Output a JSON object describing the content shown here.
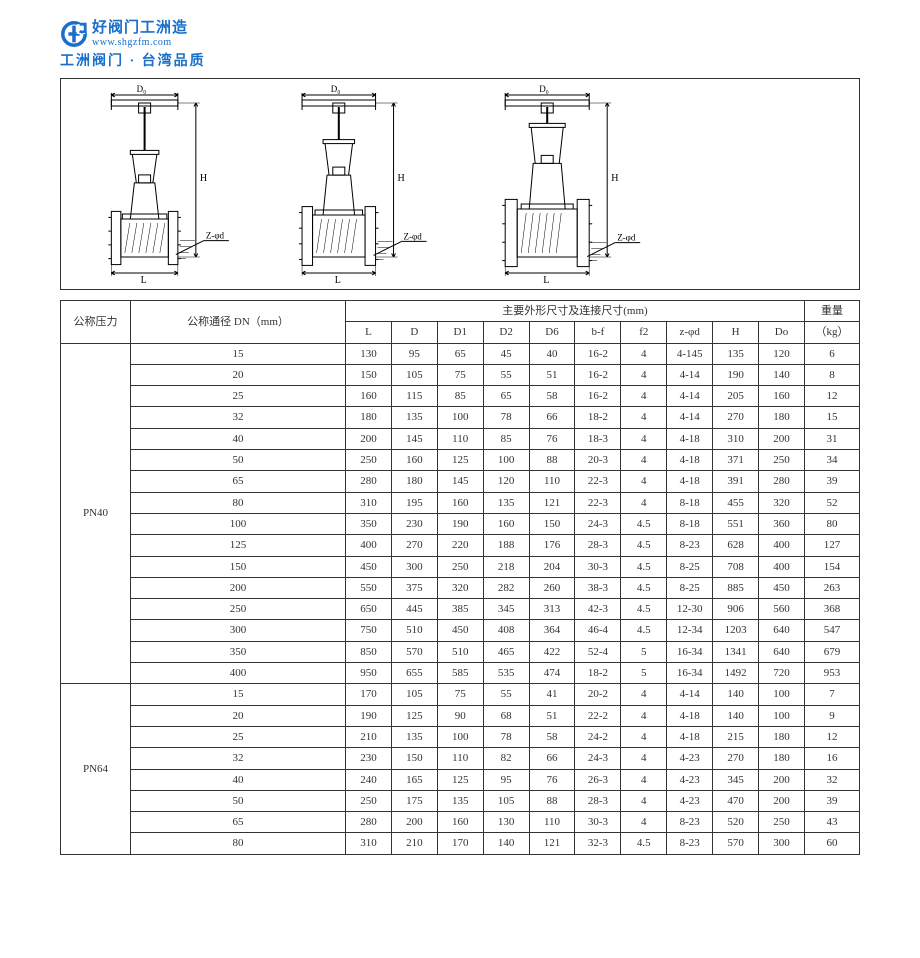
{
  "logo": {
    "main": "好阀门工洲造",
    "url": "www.shgzfm.com",
    "sub": "工洲阀门 · 台湾品质",
    "icon_color": "#1a6fc9"
  },
  "diagram": {
    "labels": {
      "D0": "D₀",
      "H": "H",
      "L": "L",
      "Zphid": "Z-φd",
      "D": "D"
    },
    "stroke": "#000000",
    "line_width": 1
  },
  "table": {
    "header": {
      "pressure": "公称压力",
      "dn": "公称通径 DN（mm）",
      "dims_group": "主要外形尺寸及连接尺寸(mm)",
      "weight": "重量",
      "weight_unit": "（kg）",
      "cols": [
        "L",
        "D",
        "D1",
        "D2",
        "D6",
        "b-f",
        "f2",
        "z-φd",
        "H",
        "Do"
      ]
    },
    "groups": [
      {
        "pressure": "PN40",
        "rows": [
          {
            "dn": "15",
            "L": "130",
            "D": "95",
            "D1": "65",
            "D2": "45",
            "D6": "40",
            "bf": "16-2",
            "f2": "4",
            "zphid": "4-145",
            "H": "135",
            "Do": "120",
            "kg": "6"
          },
          {
            "dn": "20",
            "L": "150",
            "D": "105",
            "D1": "75",
            "D2": "55",
            "D6": "51",
            "bf": "16-2",
            "f2": "4",
            "zphid": "4-14",
            "H": "190",
            "Do": "140",
            "kg": "8"
          },
          {
            "dn": "25",
            "L": "160",
            "D": "115",
            "D1": "85",
            "D2": "65",
            "D6": "58",
            "bf": "16-2",
            "f2": "4",
            "zphid": "4-14",
            "H": "205",
            "Do": "160",
            "kg": "12"
          },
          {
            "dn": "32",
            "L": "180",
            "D": "135",
            "D1": "100",
            "D2": "78",
            "D6": "66",
            "bf": "18-2",
            "f2": "4",
            "zphid": "4-14",
            "H": "270",
            "Do": "180",
            "kg": "15"
          },
          {
            "dn": "40",
            "L": "200",
            "D": "145",
            "D1": "110",
            "D2": "85",
            "D6": "76",
            "bf": "18-3",
            "f2": "4",
            "zphid": "4-18",
            "H": "310",
            "Do": "200",
            "kg": "31"
          },
          {
            "dn": "50",
            "L": "250",
            "D": "160",
            "D1": "125",
            "D2": "100",
            "D6": "88",
            "bf": "20-3",
            "f2": "4",
            "zphid": "4-18",
            "H": "371",
            "Do": "250",
            "kg": "34"
          },
          {
            "dn": "65",
            "L": "280",
            "D": "180",
            "D1": "145",
            "D2": "120",
            "D6": "110",
            "bf": "22-3",
            "f2": "4",
            "zphid": "4-18",
            "H": "391",
            "Do": "280",
            "kg": "39"
          },
          {
            "dn": "80",
            "L": "310",
            "D": "195",
            "D1": "160",
            "D2": "135",
            "D6": "121",
            "bf": "22-3",
            "f2": "4",
            "zphid": "8-18",
            "H": "455",
            "Do": "320",
            "kg": "52"
          },
          {
            "dn": "100",
            "L": "350",
            "D": "230",
            "D1": "190",
            "D2": "160",
            "D6": "150",
            "bf": "24-3",
            "f2": "4.5",
            "zphid": "8-18",
            "H": "551",
            "Do": "360",
            "kg": "80"
          },
          {
            "dn": "125",
            "L": "400",
            "D": "270",
            "D1": "220",
            "D2": "188",
            "D6": "176",
            "bf": "28-3",
            "f2": "4.5",
            "zphid": "8-23",
            "H": "628",
            "Do": "400",
            "kg": "127"
          },
          {
            "dn": "150",
            "L": "450",
            "D": "300",
            "D1": "250",
            "D2": "218",
            "D6": "204",
            "bf": "30-3",
            "f2": "4.5",
            "zphid": "8-25",
            "H": "708",
            "Do": "400",
            "kg": "154"
          },
          {
            "dn": "200",
            "L": "550",
            "D": "375",
            "D1": "320",
            "D2": "282",
            "D6": "260",
            "bf": "38-3",
            "f2": "4.5",
            "zphid": "8-25",
            "H": "885",
            "Do": "450",
            "kg": "263"
          },
          {
            "dn": "250",
            "L": "650",
            "D": "445",
            "D1": "385",
            "D2": "345",
            "D6": "313",
            "bf": "42-3",
            "f2": "4.5",
            "zphid": "12-30",
            "H": "906",
            "Do": "560",
            "kg": "368"
          },
          {
            "dn": "300",
            "L": "750",
            "D": "510",
            "D1": "450",
            "D2": "408",
            "D6": "364",
            "bf": "46-4",
            "f2": "4.5",
            "zphid": "12-34",
            "H": "1203",
            "Do": "640",
            "kg": "547"
          },
          {
            "dn": "350",
            "L": "850",
            "D": "570",
            "D1": "510",
            "D2": "465",
            "D6": "422",
            "bf": "52-4",
            "f2": "5",
            "zphid": "16-34",
            "H": "1341",
            "Do": "640",
            "kg": "679"
          },
          {
            "dn": "400",
            "L": "950",
            "D": "655",
            "D1": "585",
            "D2": "535",
            "D6": "474",
            "bf": "18-2",
            "f2": "5",
            "zphid": "16-34",
            "H": "1492",
            "Do": "720",
            "kg": "953"
          }
        ]
      },
      {
        "pressure": "PN64",
        "rows": [
          {
            "dn": "15",
            "L": "170",
            "D": "105",
            "D1": "75",
            "D2": "55",
            "D6": "41",
            "bf": "20-2",
            "f2": "4",
            "zphid": "4-14",
            "H": "140",
            "Do": "100",
            "kg": "7"
          },
          {
            "dn": "20",
            "L": "190",
            "D": "125",
            "D1": "90",
            "D2": "68",
            "D6": "51",
            "bf": "22-2",
            "f2": "4",
            "zphid": "4-18",
            "H": "140",
            "Do": "100",
            "kg": "9"
          },
          {
            "dn": "25",
            "L": "210",
            "D": "135",
            "D1": "100",
            "D2": "78",
            "D6": "58",
            "bf": "24-2",
            "f2": "4",
            "zphid": "4-18",
            "H": "215",
            "Do": "180",
            "kg": "12"
          },
          {
            "dn": "32",
            "L": "230",
            "D": "150",
            "D1": "110",
            "D2": "82",
            "D6": "66",
            "bf": "24-3",
            "f2": "4",
            "zphid": "4-23",
            "H": "270",
            "Do": "180",
            "kg": "16"
          },
          {
            "dn": "40",
            "L": "240",
            "D": "165",
            "D1": "125",
            "D2": "95",
            "D6": "76",
            "bf": "26-3",
            "f2": "4",
            "zphid": "4-23",
            "H": "345",
            "Do": "200",
            "kg": "32"
          },
          {
            "dn": "50",
            "L": "250",
            "D": "175",
            "D1": "135",
            "D2": "105",
            "D6": "88",
            "bf": "28-3",
            "f2": "4",
            "zphid": "4-23",
            "H": "470",
            "Do": "200",
            "kg": "39"
          },
          {
            "dn": "65",
            "L": "280",
            "D": "200",
            "D1": "160",
            "D2": "130",
            "D6": "110",
            "bf": "30-3",
            "f2": "4",
            "zphid": "8-23",
            "H": "520",
            "Do": "250",
            "kg": "43"
          },
          {
            "dn": "80",
            "L": "310",
            "D": "210",
            "D1": "170",
            "D2": "140",
            "D6": "121",
            "bf": "32-3",
            "f2": "4.5",
            "zphid": "8-23",
            "H": "570",
            "Do": "300",
            "kg": "60"
          }
        ]
      }
    ]
  }
}
